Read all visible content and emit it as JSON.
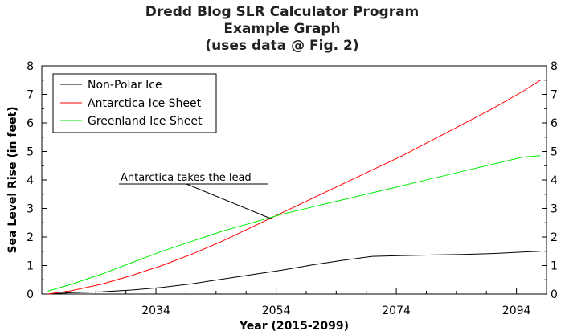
{
  "chart_data": {
    "type": "line",
    "title_lines": [
      "Dredd Blog SLR Calculator Program",
      "Example Graph",
      "(uses data @ Fig. 2)"
    ],
    "xlabel": "Year (2015-2099)",
    "ylabel": "Sea Level Rise (in feet)",
    "xlim": [
      2015,
      2099
    ],
    "ylim": [
      0,
      8
    ],
    "x_ticks": [
      2034,
      2054,
      2074,
      2094
    ],
    "x_tick_labels": [
      "2034",
      "2054",
      "2074",
      "2094"
    ],
    "y_ticks": [
      0,
      1,
      2,
      3,
      4,
      5,
      6,
      7,
      8
    ],
    "y_tick_labels": [
      "0",
      "1",
      "2",
      "3",
      "4",
      "5",
      "6",
      "7",
      "8"
    ],
    "grid": false,
    "legend_position": "top-left",
    "series": [
      {
        "name": "Non-Polar Ice",
        "color": "#000000",
        "x": [
          2016,
          2020,
          2025,
          2030,
          2035,
          2040,
          2045,
          2050,
          2055,
          2060,
          2065,
          2070,
          2075,
          2080,
          2085,
          2090,
          2095,
          2098
        ],
        "values": [
          0.0,
          0.05,
          0.08,
          0.14,
          0.23,
          0.36,
          0.52,
          0.68,
          0.84,
          1.02,
          1.18,
          1.32,
          1.35,
          1.37,
          1.39,
          1.42,
          1.47,
          1.5
        ]
      },
      {
        "name": "Antarctica Ice Sheet",
        "color": "#ff0000",
        "x": [
          2016,
          2020,
          2025,
          2030,
          2035,
          2040,
          2045,
          2050,
          2055,
          2060,
          2065,
          2070,
          2075,
          2080,
          2085,
          2090,
          2095,
          2098
        ],
        "values": [
          0.0,
          0.12,
          0.35,
          0.65,
          1.0,
          1.4,
          1.85,
          2.35,
          2.85,
          3.35,
          3.85,
          4.35,
          4.85,
          5.4,
          5.95,
          6.5,
          7.1,
          7.5
        ]
      },
      {
        "name": "Greenland Ice Sheet",
        "color": "#00ee00",
        "x": [
          2016,
          2020,
          2025,
          2030,
          2035,
          2040,
          2045,
          2050,
          2055,
          2060,
          2065,
          2070,
          2075,
          2080,
          2085,
          2090,
          2095,
          2098
        ],
        "values": [
          0.1,
          0.35,
          0.7,
          1.1,
          1.5,
          1.85,
          2.2,
          2.5,
          2.8,
          3.05,
          3.3,
          3.55,
          3.8,
          4.05,
          4.3,
          4.55,
          4.8,
          4.85
        ]
      }
    ],
    "annotations": [
      {
        "text": "Antarctica takes the lead",
        "x": 2053.4,
        "y": 2.62
      }
    ]
  }
}
